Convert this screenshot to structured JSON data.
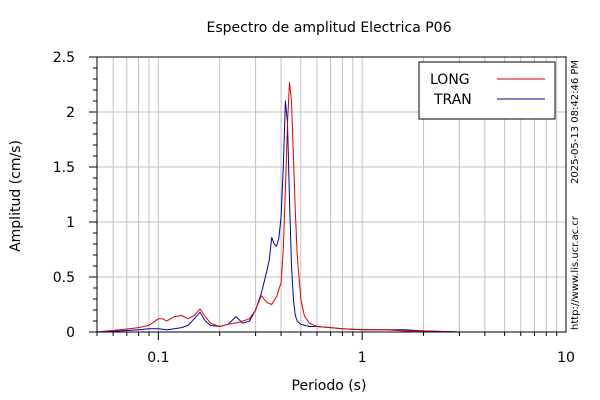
{
  "chart_data": {
    "type": "line",
    "title": "Espectro de amplitud Electrica P06",
    "xlabel": "Periodo (s)",
    "ylabel": "Amplitud (cm/s)",
    "xscale": "log",
    "xlim": [
      0.05,
      10
    ],
    "ylim": [
      0,
      2.5
    ],
    "x_tick_labels": [
      "0.1",
      "1",
      "10"
    ],
    "x_tick_values": [
      0.1,
      1,
      10
    ],
    "y_tick_labels": [
      "0",
      "0.5",
      "1",
      "1.5",
      "2",
      "2.5"
    ],
    "y_tick_values": [
      0,
      0.5,
      1,
      1.5,
      2,
      2.5
    ],
    "grid": true,
    "legend_position": "top-right",
    "series": [
      {
        "name": "LONG",
        "color": "#dd0000",
        "x": [
          0.05,
          0.065,
          0.08,
          0.09,
          0.1,
          0.105,
          0.11,
          0.115,
          0.12,
          0.13,
          0.14,
          0.15,
          0.16,
          0.17,
          0.18,
          0.2,
          0.22,
          0.25,
          0.28,
          0.3,
          0.32,
          0.34,
          0.36,
          0.38,
          0.4,
          0.41,
          0.42,
          0.43,
          0.44,
          0.45,
          0.46,
          0.47,
          0.48,
          0.5,
          0.52,
          0.55,
          0.6,
          0.7,
          0.8,
          1.0,
          1.3,
          1.6,
          2.0,
          3.0,
          5.0,
          10.0
        ],
        "y": [
          0.0,
          0.02,
          0.04,
          0.06,
          0.12,
          0.12,
          0.1,
          0.12,
          0.14,
          0.15,
          0.12,
          0.15,
          0.21,
          0.14,
          0.08,
          0.05,
          0.07,
          0.09,
          0.12,
          0.2,
          0.33,
          0.27,
          0.25,
          0.32,
          0.45,
          0.75,
          1.3,
          1.9,
          2.27,
          2.1,
          1.6,
          1.1,
          0.7,
          0.3,
          0.15,
          0.08,
          0.05,
          0.04,
          0.03,
          0.02,
          0.02,
          0.01,
          0.01,
          0.0,
          0.0,
          0.0
        ]
      },
      {
        "name": "TRAN",
        "color": "#0000aa",
        "x": [
          0.05,
          0.065,
          0.08,
          0.09,
          0.1,
          0.11,
          0.12,
          0.13,
          0.14,
          0.15,
          0.16,
          0.17,
          0.18,
          0.2,
          0.22,
          0.24,
          0.26,
          0.28,
          0.3,
          0.32,
          0.34,
          0.35,
          0.36,
          0.37,
          0.38,
          0.39,
          0.4,
          0.41,
          0.42,
          0.43,
          0.44,
          0.45,
          0.46,
          0.47,
          0.48,
          0.5,
          0.55,
          0.6,
          0.7,
          0.8,
          1.0,
          1.3,
          1.6,
          2.0,
          3.0,
          5.0,
          10.0
        ],
        "y": [
          0.0,
          0.01,
          0.02,
          0.03,
          0.03,
          0.02,
          0.03,
          0.04,
          0.06,
          0.12,
          0.18,
          0.1,
          0.06,
          0.05,
          0.07,
          0.14,
          0.08,
          0.1,
          0.2,
          0.35,
          0.55,
          0.65,
          0.86,
          0.8,
          0.78,
          0.85,
          1.05,
          1.5,
          2.1,
          1.9,
          1.2,
          0.6,
          0.3,
          0.15,
          0.1,
          0.07,
          0.05,
          0.05,
          0.04,
          0.03,
          0.02,
          0.02,
          0.02,
          0.01,
          0.0,
          0.0,
          0.0
        ]
      }
    ]
  },
  "side_text": {
    "url": "http://www.lis.ucr.ac.cr",
    "timestamp": "2025-05-13 08:42:46 PM"
  }
}
